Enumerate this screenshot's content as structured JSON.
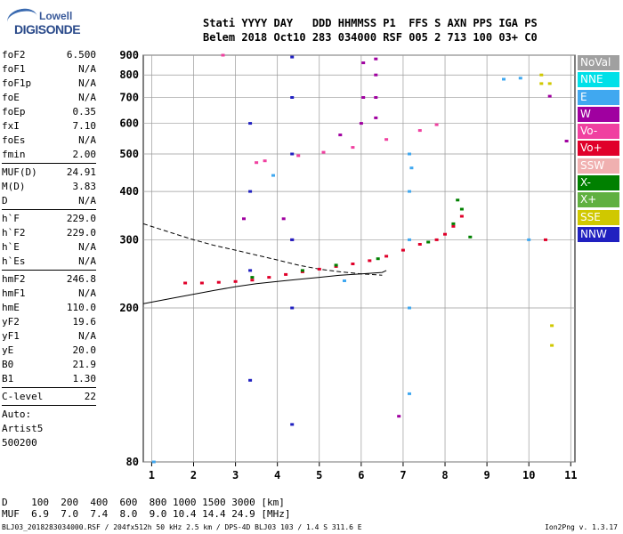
{
  "logo": {
    "line1": "Lowell",
    "line2": "DIGISONDE"
  },
  "header": {
    "line1": "Stati YYYY DAY   DDD HHMMSS P1  FFS S AXN PPS IGA PS",
    "line2": "Belem 2018 Oct10 283 034000 RSF 005 2 713 100 03+ C0"
  },
  "params": {
    "g1": [
      {
        "k": "foF2",
        "v": "6.500"
      },
      {
        "k": "foF1",
        "v": "N/A"
      },
      {
        "k": "foF1p",
        "v": "N/A"
      },
      {
        "k": "foE",
        "v": "N/A"
      },
      {
        "k": "foEp",
        "v": "0.35"
      },
      {
        "k": "fxI",
        "v": "7.10"
      },
      {
        "k": "foEs",
        "v": "N/A"
      },
      {
        "k": "fmin",
        "v": "2.00"
      }
    ],
    "g2": [
      {
        "k": "MUF(D)",
        "v": "24.91"
      },
      {
        "k": "M(D)",
        "v": "3.83"
      },
      {
        "k": "D",
        "v": "N/A"
      }
    ],
    "g3": [
      {
        "k": "h`F",
        "v": "229.0"
      },
      {
        "k": "h`F2",
        "v": "229.0"
      },
      {
        "k": "h`E",
        "v": "N/A"
      },
      {
        "k": "h`Es",
        "v": "N/A"
      }
    ],
    "g4": [
      {
        "k": "hmF2",
        "v": "246.8"
      },
      {
        "k": "hmF1",
        "v": "N/A"
      },
      {
        "k": "hmE",
        "v": "110.0"
      },
      {
        "k": "yF2",
        "v": "19.6"
      },
      {
        "k": "yF1",
        "v": "N/A"
      },
      {
        "k": "yE",
        "v": "20.0"
      },
      {
        "k": "B0",
        "v": "21.9"
      },
      {
        "k": "B1",
        "v": "1.30"
      }
    ],
    "g5": [
      {
        "k": "C-level",
        "v": "22"
      }
    ],
    "g6": [
      {
        "k": "Auto:",
        "v": ""
      },
      {
        "k": "Artist5",
        "v": ""
      },
      {
        "k": "500200",
        "v": ""
      }
    ]
  },
  "legend": [
    {
      "label": "NoVal",
      "color": "#a0a0a0"
    },
    {
      "label": "NNE",
      "color": "#00e0e8"
    },
    {
      "label": "E",
      "color": "#40a8f0"
    },
    {
      "label": "W",
      "color": "#a000a0"
    },
    {
      "label": "Vo-",
      "color": "#f040a0"
    },
    {
      "label": "Vo+",
      "color": "#e0002a"
    },
    {
      "label": "SSW",
      "color": "#f0b0b0"
    },
    {
      "label": "X-",
      "color": "#008000"
    },
    {
      "label": "X+",
      "color": "#60b040"
    },
    {
      "label": "SSE",
      "color": "#d0c800"
    },
    {
      "label": "NNW",
      "color": "#2020c0"
    }
  ],
  "bottom": {
    "line1": "D    100  200  400  600  800 1000 1500 3000 [km]",
    "line2": "MUF  6.9  7.0  7.4  8.0  9.0 10.4 14.4 24.9 [MHz]"
  },
  "footer": {
    "file": "BLJ03_2018283034000.RSF / 204fx512h 50 kHz 2.5 km / DPS-4D BLJ03 103 / 1.4 S 311.6 E",
    "version": "Ion2Png v. 1.3.17"
  },
  "chart_data": {
    "type": "scatter",
    "title": "",
    "xlabel": "",
    "ylabel": "",
    "xlim": [
      0.8,
      11.1
    ],
    "ylim": [
      80,
      900
    ],
    "x_ticks": [
      "1",
      "2",
      "3",
      "4",
      "5",
      "6",
      "7",
      "8",
      "9",
      "10",
      "11"
    ],
    "y_ticks": [
      "80",
      "200",
      "300",
      "400",
      "500",
      "600",
      "700",
      "800",
      "900"
    ],
    "grid": true,
    "y_scale": "log",
    "series": [
      {
        "name": "Vo+",
        "color": "#e0002a",
        "points": [
          [
            1.8,
            232
          ],
          [
            2.2,
            232
          ],
          [
            2.6,
            233
          ],
          [
            3.0,
            234
          ],
          [
            3.4,
            236
          ],
          [
            3.8,
            240
          ],
          [
            4.2,
            244
          ],
          [
            4.6,
            248
          ],
          [
            5.0,
            252
          ],
          [
            5.4,
            256
          ],
          [
            5.8,
            260
          ],
          [
            6.2,
            265
          ],
          [
            6.6,
            272
          ],
          [
            7.0,
            282
          ],
          [
            7.4,
            292
          ],
          [
            7.8,
            300
          ],
          [
            8.0,
            310
          ],
          [
            8.2,
            325
          ],
          [
            8.4,
            345
          ],
          [
            10.4,
            300
          ]
        ]
      },
      {
        "name": "X-",
        "color": "#008000",
        "points": [
          [
            3.4,
            240
          ],
          [
            4.6,
            250
          ],
          [
            5.4,
            258
          ],
          [
            6.4,
            268
          ],
          [
            7.6,
            296
          ],
          [
            8.2,
            330
          ],
          [
            8.4,
            360
          ],
          [
            8.6,
            305
          ],
          [
            8.3,
            380
          ]
        ]
      },
      {
        "name": "E",
        "color": "#40a8f0",
        "points": [
          [
            7.15,
            120
          ],
          [
            7.15,
            200
          ],
          [
            7.15,
            300
          ],
          [
            7.15,
            400
          ],
          [
            7.15,
            500
          ],
          [
            7.2,
            460
          ],
          [
            5.6,
            235
          ],
          [
            9.4,
            780
          ],
          [
            9.8,
            785
          ],
          [
            10.0,
            300
          ],
          [
            1.05,
            80
          ],
          [
            3.9,
            440
          ]
        ]
      },
      {
        "name": "W",
        "color": "#a000a0",
        "points": [
          [
            6.35,
            880
          ],
          [
            6.35,
            800
          ],
          [
            6.35,
            700
          ],
          [
            6.35,
            620
          ],
          [
            6.05,
            860
          ],
          [
            6.05,
            700
          ],
          [
            6.0,
            600
          ],
          [
            3.2,
            340
          ],
          [
            4.15,
            340
          ],
          [
            4.35,
            300
          ],
          [
            5.5,
            560
          ],
          [
            6.9,
            105
          ],
          [
            10.5,
            705
          ],
          [
            10.9,
            540
          ]
        ]
      },
      {
        "name": "NNW",
        "color": "#2020c0",
        "points": [
          [
            4.35,
            890
          ],
          [
            4.35,
            700
          ],
          [
            4.35,
            500
          ],
          [
            4.35,
            300
          ],
          [
            4.35,
            200
          ],
          [
            4.35,
            100
          ],
          [
            3.35,
            600
          ],
          [
            3.35,
            400
          ],
          [
            3.35,
            250
          ],
          [
            3.35,
            130
          ]
        ]
      },
      {
        "name": "SSE",
        "color": "#d0c800",
        "points": [
          [
            10.3,
            800
          ],
          [
            10.3,
            760
          ],
          [
            10.5,
            760
          ],
          [
            10.55,
            180
          ],
          [
            10.55,
            160
          ]
        ]
      },
      {
        "name": "Vo-",
        "color": "#f040a0",
        "points": [
          [
            3.5,
            475
          ],
          [
            3.7,
            480
          ],
          [
            4.5,
            495
          ],
          [
            5.1,
            505
          ],
          [
            5.8,
            520
          ],
          [
            6.6,
            545
          ],
          [
            7.4,
            575
          ],
          [
            7.8,
            595
          ],
          [
            2.7,
            900
          ]
        ]
      }
    ],
    "fitted_curves": [
      {
        "name": "dashed",
        "style": "dashed",
        "points": [
          [
            0.8,
            330
          ],
          [
            1.5,
            312
          ],
          [
            2.0,
            300
          ],
          [
            2.5,
            290
          ],
          [
            3.0,
            282
          ],
          [
            3.5,
            274
          ],
          [
            4.0,
            266
          ],
          [
            4.5,
            258
          ],
          [
            5.0,
            252
          ],
          [
            5.5,
            248
          ],
          [
            6.0,
            245
          ],
          [
            6.5,
            243
          ]
        ]
      },
      {
        "name": "solid",
        "style": "solid",
        "points": [
          [
            0.8,
            205
          ],
          [
            1.5,
            212
          ],
          [
            2.0,
            217
          ],
          [
            2.5,
            222
          ],
          [
            3.0,
            227
          ],
          [
            3.5,
            231
          ],
          [
            4.0,
            234
          ],
          [
            4.5,
            237
          ],
          [
            5.0,
            240
          ],
          [
            5.5,
            243
          ],
          [
            6.0,
            245
          ],
          [
            6.5,
            247
          ],
          [
            6.6,
            250
          ]
        ]
      }
    ]
  }
}
